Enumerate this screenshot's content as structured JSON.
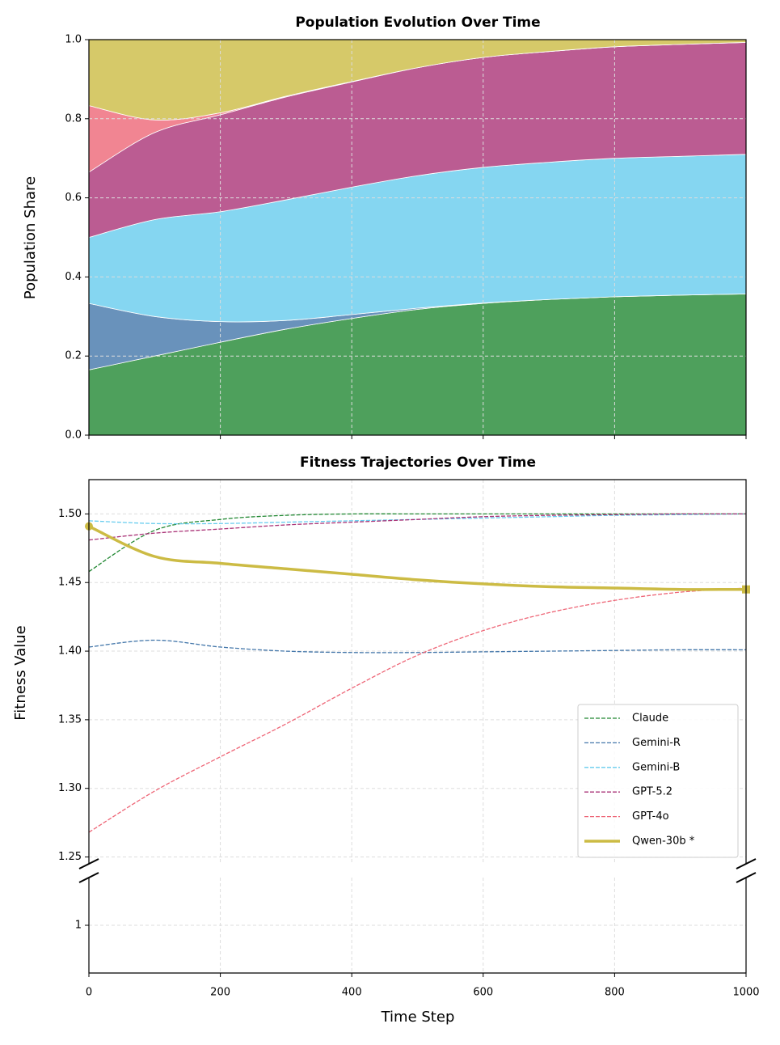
{
  "chart_data": [
    {
      "type": "stackedarea",
      "title": "Population Evolution Over Time",
      "ylabel": "Population Share",
      "x": [
        0,
        100,
        200,
        300,
        400,
        500,
        600,
        700,
        800,
        900,
        1000
      ],
      "series": [
        {
          "color": "#228833",
          "values": [
            0.165,
            0.2,
            0.235,
            0.268,
            0.295,
            0.318,
            0.333,
            0.343,
            0.35,
            0.354,
            0.357
          ]
        },
        {
          "color": "#4477aa",
          "values": [
            0.168,
            0.1,
            0.052,
            0.022,
            0.01,
            0.003,
            0.001,
            0,
            0,
            0,
            0
          ]
        },
        {
          "color": "#66ccee",
          "values": [
            0.167,
            0.245,
            0.278,
            0.305,
            0.322,
            0.335,
            0.343,
            0.347,
            0.35,
            0.351,
            0.353
          ]
        },
        {
          "color": "#aa3377",
          "values": [
            0.165,
            0.22,
            0.245,
            0.26,
            0.266,
            0.273,
            0.278,
            0.28,
            0.282,
            0.283,
            0.283
          ]
        },
        {
          "color": "#ee6677",
          "values": [
            0.168,
            0.032,
            0.005,
            0.002,
            0.001,
            0,
            0,
            0,
            0,
            0,
            0
          ]
        },
        {
          "color": "#ccbb44",
          "values": [
            0.167,
            0.203,
            0.185,
            0.143,
            0.106,
            0.071,
            0.045,
            0.03,
            0.018,
            0.012,
            0.007
          ]
        }
      ],
      "fill_opacity": 0.8,
      "xlim": [
        0,
        1000
      ],
      "ylim": [
        0,
        1
      ],
      "yticks": [
        {
          "value": 0,
          "label": "0.0"
        },
        0.2,
        0.4,
        0.6,
        0.8,
        {
          "value": 1,
          "label": "1.0"
        }
      ],
      "grid": true
    },
    {
      "type": "line",
      "title": "Fitness Trajectories Over Time",
      "xlabel": "Time Step",
      "ylabel": "Fitness Value",
      "x": [
        0,
        100,
        200,
        300,
        400,
        500,
        600,
        700,
        800,
        900,
        1000
      ],
      "series": [
        {
          "name": "Claude",
          "color": "#228833",
          "linestyle": "dashed",
          "linewidth": 1.3,
          "values": [
            1.458,
            1.488,
            1.496,
            1.499,
            1.5,
            1.5,
            1.5,
            1.5,
            1.5,
            1.5,
            1.5
          ]
        },
        {
          "name": "Gemini-R",
          "color": "#4477aa",
          "linestyle": "dashed",
          "linewidth": 1.3,
          "values": [
            1.403,
            1.408,
            1.403,
            1.4,
            1.399,
            1.399,
            1.3995,
            1.4,
            1.4005,
            1.401,
            1.401
          ]
        },
        {
          "name": "Gemini-B",
          "color": "#66ccee",
          "linestyle": "dashed",
          "linewidth": 1.3,
          "values": [
            1.495,
            1.493,
            1.493,
            1.494,
            1.495,
            1.496,
            1.497,
            1.498,
            1.499,
            1.4995,
            1.5
          ]
        },
        {
          "name": "GPT-5.2",
          "color": "#aa3377",
          "linestyle": "dashed",
          "linewidth": 1.3,
          "values": [
            1.481,
            1.486,
            1.489,
            1.492,
            1.494,
            1.496,
            1.498,
            1.499,
            1.4995,
            1.5,
            1.5
          ]
        },
        {
          "name": "GPT-4o",
          "color": "#ee6677",
          "linestyle": "dashed",
          "linewidth": 1.3,
          "values": [
            1.268,
            1.298,
            1.323,
            1.347,
            1.373,
            1.397,
            1.415,
            1.428,
            1.437,
            1.443,
            1.446
          ]
        },
        {
          "name": "Qwen-30b *",
          "color": "#ccbb44",
          "linestyle": "solid",
          "linewidth": 3.5,
          "values": [
            1.491,
            1.469,
            1.464,
            1.46,
            1.456,
            1.452,
            1.449,
            1.447,
            1.446,
            1.445,
            1.445
          ]
        }
      ],
      "xlim": [
        0,
        1000
      ],
      "xticks": [
        0,
        200,
        400,
        600,
        800,
        1000
      ],
      "ylim": [
        1.245,
        1.525
      ],
      "yticks": [
        1.25,
        {
          "value": 1.3,
          "label": "1.30"
        },
        1.35,
        {
          "value": 1.4,
          "label": "1.40"
        },
        1.45,
        {
          "value": 1.5,
          "label": "1.50"
        }
      ],
      "lower_ylim": [
        0.965,
        1.035
      ],
      "lower_yticks": [
        1
      ],
      "legend": "lower right",
      "grid": true
    }
  ]
}
